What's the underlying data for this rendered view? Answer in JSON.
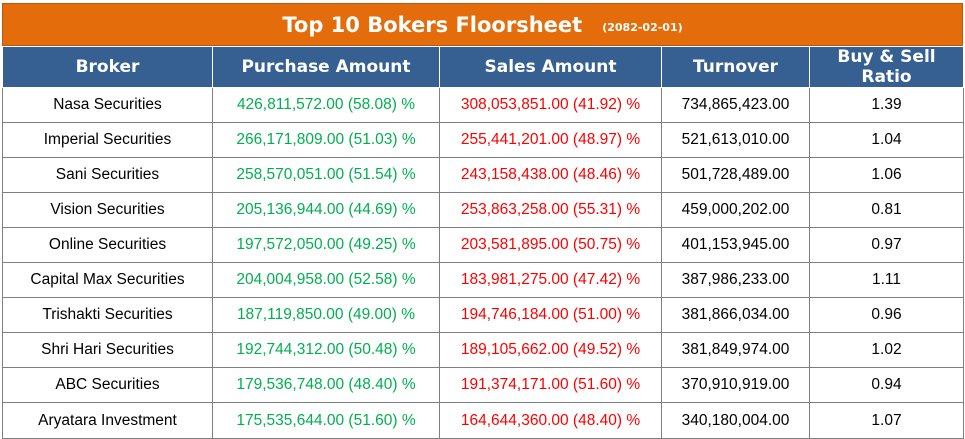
{
  "title": "Top 10 Bokers Floorsheet",
  "date": "(2082-02-01)",
  "colors": {
    "title_bg": "#e46c0a",
    "header_bg": "#376092",
    "purchase": "#00b050",
    "sales": "#ff0000"
  },
  "columns": [
    "Broker",
    "Purchase Amount",
    "Sales Amount",
    "Turnover",
    "Buy & Sell Ratio"
  ],
  "rows": [
    [
      "Nasa Securities",
      "426,811,572.00 (58.08) %",
      "308,053,851.00 (41.92) %",
      "734,865,423.00",
      "1.39"
    ],
    [
      "Imperial Securities",
      "266,171,809.00 (51.03) %",
      "255,441,201.00 (48.97) %",
      "521,613,010.00",
      "1.04"
    ],
    [
      "Sani Securities",
      "258,570,051.00 (51.54) %",
      "243,158,438.00 (48.46) %",
      "501,728,489.00",
      "1.06"
    ],
    [
      "Vision Securities",
      "205,136,944.00 (44.69) %",
      "253,863,258.00 (55.31) %",
      "459,000,202.00",
      "0.81"
    ],
    [
      "Online Securities",
      "197,572,050.00 (49.25) %",
      "203,581,895.00 (50.75) %",
      "401,153,945.00",
      "0.97"
    ],
    [
      "Capital Max Securities",
      "204,004,958.00 (52.58) %",
      "183,981,275.00 (47.42) %",
      "387,986,233.00",
      "1.11"
    ],
    [
      "Trishakti Securities",
      "187,119,850.00 (49.00) %",
      "194,746,184.00 (51.00) %",
      "381,866,034.00",
      "0.96"
    ],
    [
      "Shri Hari Securities",
      "192,744,312.00 (50.48) %",
      "189,105,662.00 (49.52) %",
      "381,849,974.00",
      "1.02"
    ],
    [
      "ABC Securities",
      "179,536,748.00 (48.40) %",
      "191,374,171.00 (51.60) %",
      "370,910,919.00",
      "0.94"
    ],
    [
      "Aryatara Investment",
      "175,535,644.00 (51.60) %",
      "164,644,360.00 (48.40) %",
      "340,180,004.00",
      "1.07"
    ]
  ]
}
